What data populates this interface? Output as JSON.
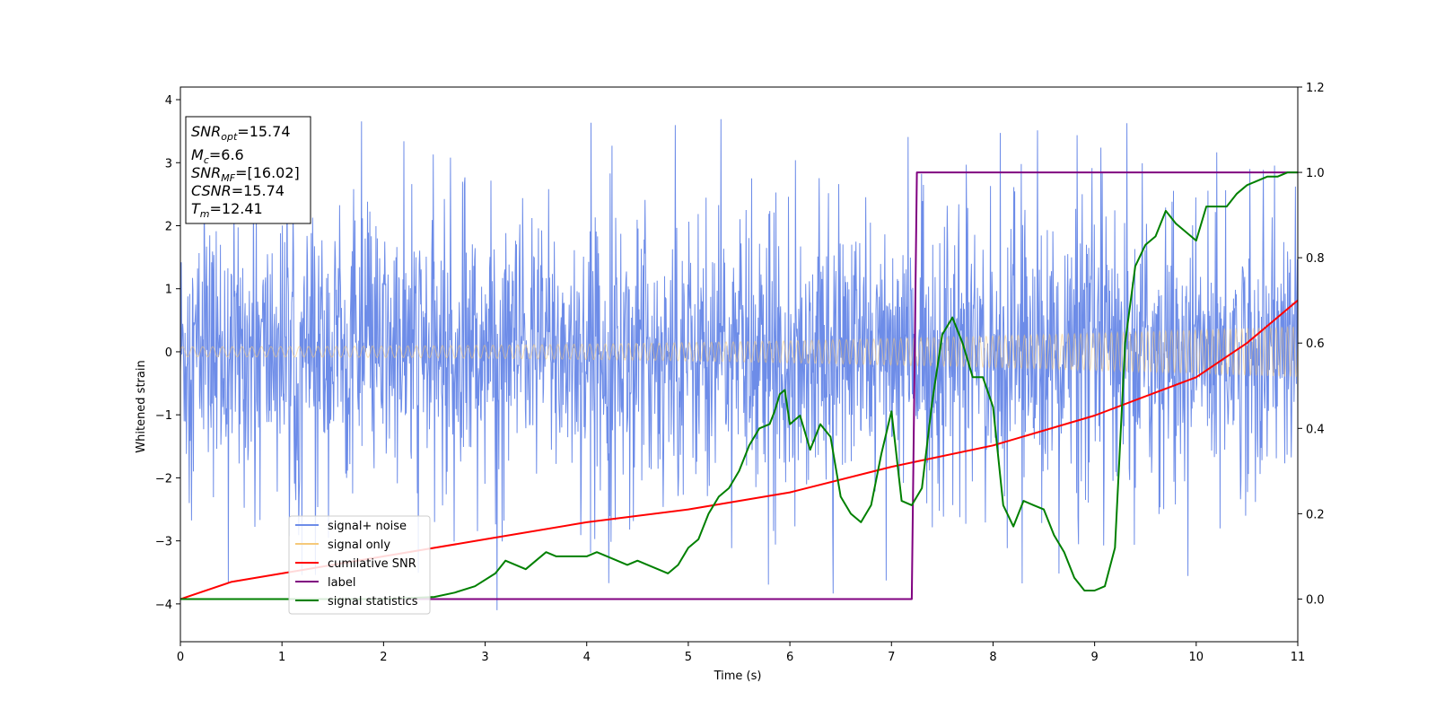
{
  "chart_data": {
    "type": "line",
    "xlabel": "Time (s)",
    "ylabel": "Whitened strain",
    "xlim": [
      0,
      11
    ],
    "ylim_left": [
      -4.6,
      4.2
    ],
    "ylim_right": [
      -0.1,
      1.2
    ],
    "x_ticks": [
      "0",
      "1",
      "2",
      "3",
      "4",
      "5",
      "6",
      "7",
      "8",
      "9",
      "10",
      "11"
    ],
    "y_left_ticks": [
      "−4",
      "−3",
      "−2",
      "−1",
      "0",
      "1",
      "2",
      "3",
      "4"
    ],
    "y_right_ticks": [
      "0.0",
      "0.2",
      "0.4",
      "0.6",
      "0.8",
      "1.0",
      "1.2"
    ],
    "grid": false,
    "legend_position": "lower-left",
    "colors": {
      "signal_noise": "#6d8ce8",
      "signal_only": "#f5c97a",
      "cumulative_snr": "#ff0000",
      "label": "#800080",
      "signal_statistics": "#008000"
    },
    "series": [
      {
        "name": "signal+ noise",
        "axis": "left",
        "kind": "noise",
        "amplitude": 1.2,
        "peak": 3.7
      },
      {
        "name": "signal only",
        "axis": "left",
        "kind": "chirp",
        "amp_start": 0.08,
        "amp_end": 0.4
      },
      {
        "name": "cumilative SNR",
        "axis": "right",
        "x": [
          0,
          0.5,
          1,
          2,
          3,
          4,
          5,
          6,
          7,
          8,
          9,
          10,
          10.5,
          11
        ],
        "values": [
          0.0,
          0.04,
          0.06,
          0.1,
          0.14,
          0.18,
          0.21,
          0.25,
          0.31,
          0.36,
          0.43,
          0.52,
          0.6,
          0.7
        ]
      },
      {
        "name": "label",
        "axis": "right",
        "x": [
          0,
          7.2,
          7.25,
          11
        ],
        "values": [
          0,
          0,
          1,
          1
        ]
      },
      {
        "name": "signal statistics",
        "axis": "right",
        "x": [
          0,
          0.5,
          1,
          1.5,
          2,
          2.5,
          2.7,
          2.9,
          3.1,
          3.2,
          3.3,
          3.4,
          3.5,
          3.6,
          3.7,
          3.8,
          3.9,
          4.0,
          4.1,
          4.2,
          4.3,
          4.4,
          4.5,
          4.6,
          4.7,
          4.8,
          4.9,
          5.0,
          5.1,
          5.2,
          5.3,
          5.4,
          5.5,
          5.6,
          5.7,
          5.8,
          5.85,
          5.9,
          5.95,
          6.0,
          6.1,
          6.2,
          6.3,
          6.4,
          6.5,
          6.6,
          6.7,
          6.8,
          6.9,
          7.0,
          7.1,
          7.2,
          7.3,
          7.4,
          7.5,
          7.6,
          7.7,
          7.8,
          7.9,
          8.0,
          8.1,
          8.2,
          8.3,
          8.4,
          8.5,
          8.6,
          8.7,
          8.8,
          8.9,
          9.0,
          9.1,
          9.2,
          9.3,
          9.4,
          9.5,
          9.6,
          9.7,
          9.8,
          9.9,
          10.0,
          10.1,
          10.2,
          10.3,
          10.4,
          10.5,
          10.6,
          10.7,
          10.8,
          10.9,
          11.0
        ],
        "values": [
          0.0,
          0.0,
          0.0,
          0.0,
          0.0,
          0.005,
          0.015,
          0.03,
          0.06,
          0.09,
          0.08,
          0.07,
          0.09,
          0.11,
          0.1,
          0.1,
          0.1,
          0.1,
          0.11,
          0.1,
          0.09,
          0.08,
          0.09,
          0.08,
          0.07,
          0.06,
          0.08,
          0.12,
          0.14,
          0.2,
          0.24,
          0.26,
          0.3,
          0.36,
          0.4,
          0.41,
          0.44,
          0.48,
          0.49,
          0.41,
          0.43,
          0.35,
          0.41,
          0.38,
          0.24,
          0.2,
          0.18,
          0.22,
          0.34,
          0.44,
          0.23,
          0.22,
          0.26,
          0.46,
          0.62,
          0.66,
          0.6,
          0.52,
          0.52,
          0.45,
          0.22,
          0.17,
          0.23,
          0.22,
          0.21,
          0.15,
          0.11,
          0.05,
          0.02,
          0.02,
          0.03,
          0.12,
          0.6,
          0.78,
          0.83,
          0.85,
          0.91,
          0.88,
          0.86,
          0.84,
          0.92,
          0.92,
          0.92,
          0.95,
          0.97,
          0.98,
          0.99,
          0.99,
          1.0,
          1.0
        ]
      }
    ],
    "annotation_lines": [
      {
        "base": "SNR",
        "sub": "opt",
        "value": "=15.74"
      },
      {
        "base": "M",
        "sub": "c",
        "value": "=6.6"
      },
      {
        "base": "SNR",
        "sub": "MF",
        "value": "=[16.02]"
      },
      {
        "base": "CSNR",
        "sub": "",
        "value": "=15.74"
      },
      {
        "base": "T",
        "sub": "m",
        "value": "=12.41"
      }
    ]
  }
}
